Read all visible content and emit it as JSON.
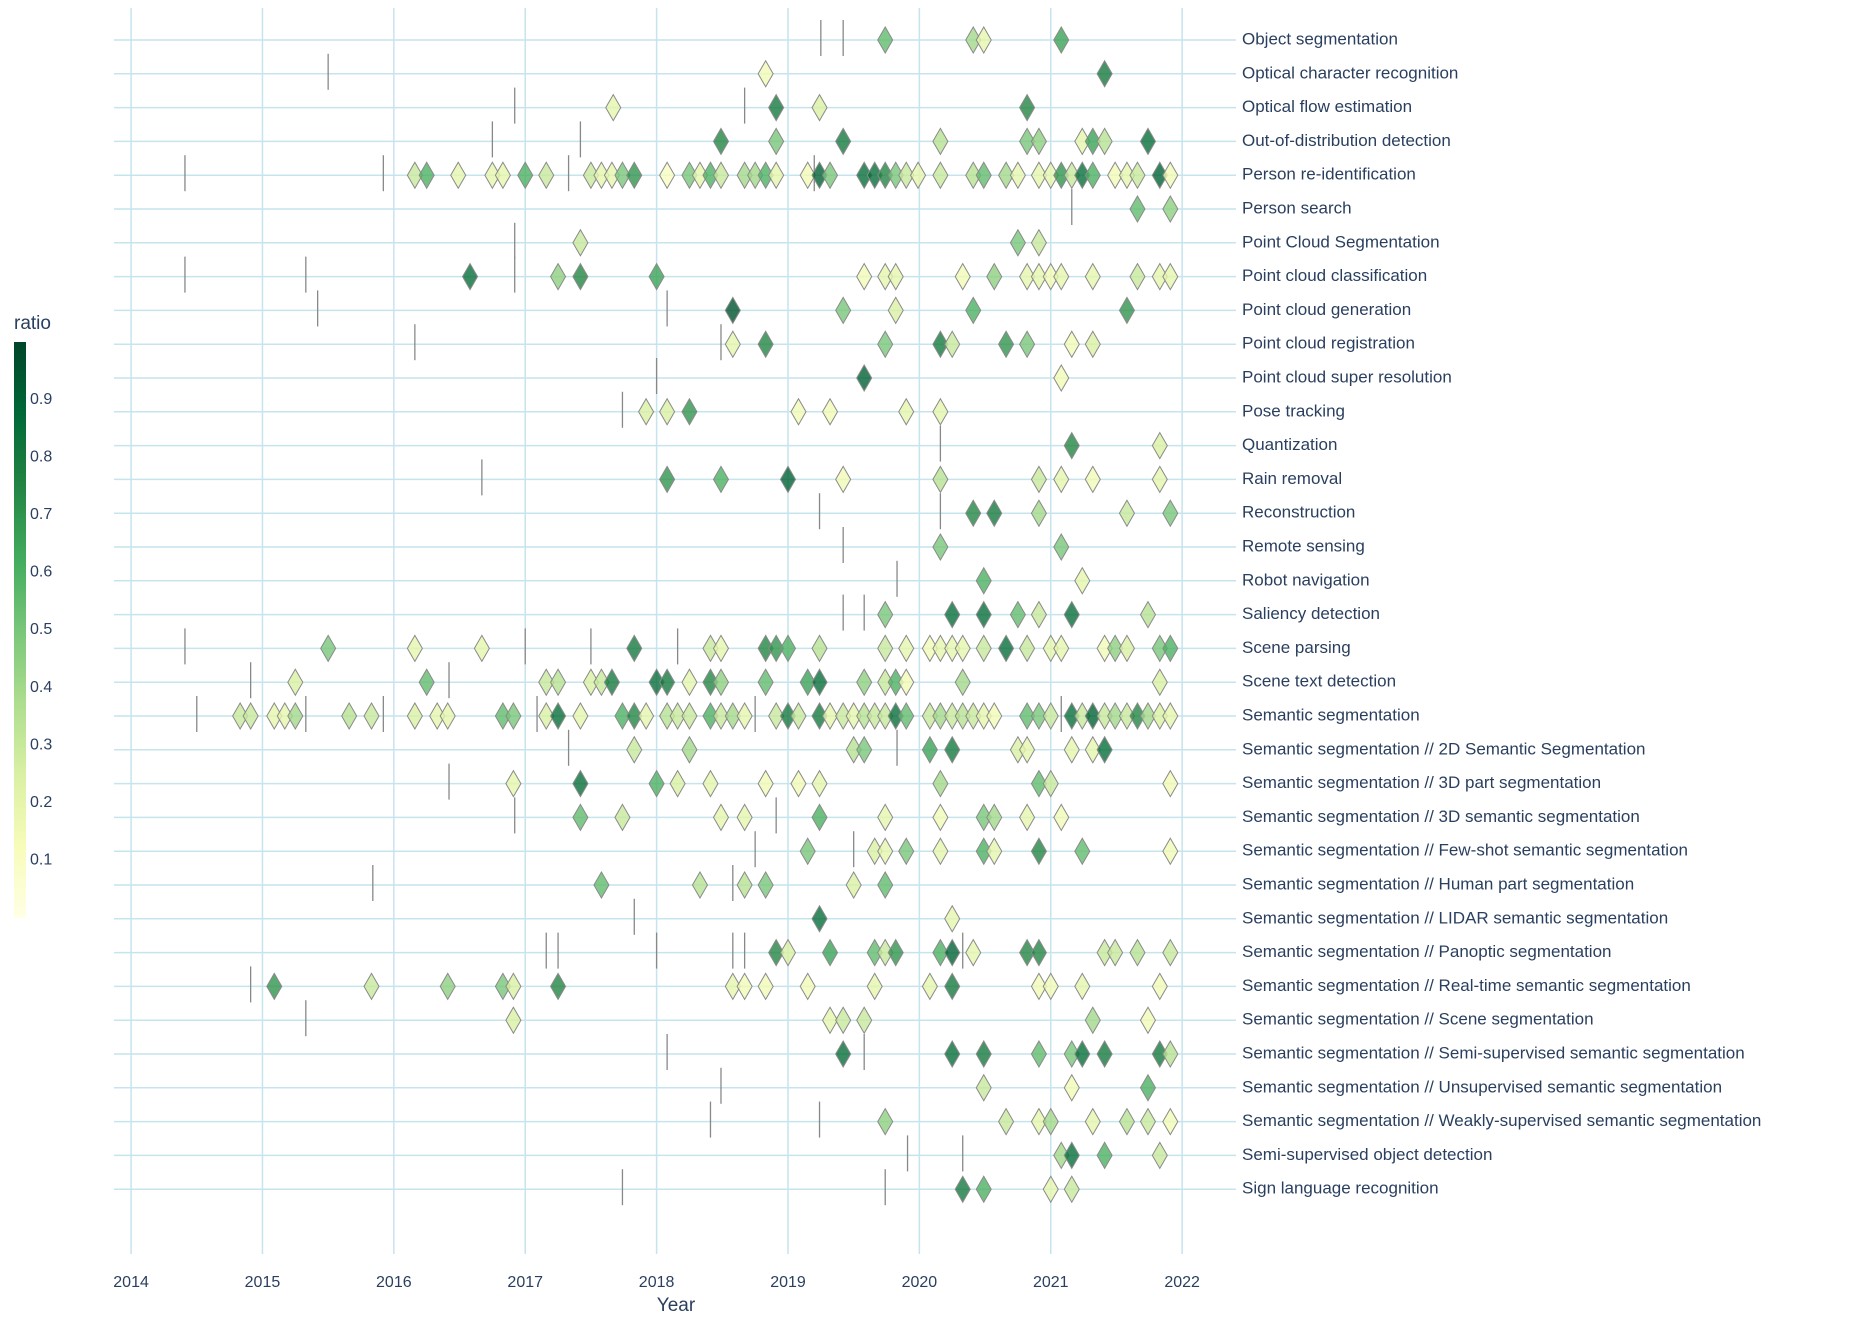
{
  "chart_data": {
    "type": "scatter",
    "xlabel": "Year",
    "xlim": [
      2013.87,
      2022.41
    ],
    "xticks": [
      2014,
      2015,
      2016,
      2017,
      2018,
      2019,
      2020,
      2021,
      2022
    ],
    "grid": true,
    "colorbar": {
      "title": "ratio",
      "lim": [
        0,
        1
      ],
      "ticks": [
        0.1,
        0.2,
        0.3,
        0.4,
        0.5,
        0.6,
        0.7,
        0.8,
        0.9
      ],
      "colorscale": [
        "#ffffe5",
        "#f7fcb9",
        "#d9f0a3",
        "#addd8e",
        "#78c679",
        "#41ab5d",
        "#238443",
        "#006837",
        "#004529"
      ]
    },
    "rows": [
      {
        "name": "Object segmentation",
        "x": [
          2019.74,
          2020.41,
          2020.49,
          2021.08
        ],
        "ratio": [
          0.55,
          0.4,
          0.2,
          0.65
        ],
        "ticks": [
          2019.25,
          2019.42
        ]
      },
      {
        "name": "Optical character recognition",
        "x": [
          2018.83,
          2021.41
        ],
        "ratio": [
          0.15,
          0.8
        ],
        "ticks": [
          2015.5
        ]
      },
      {
        "name": "Optical flow estimation",
        "x": [
          2017.67,
          2018.91,
          2019.24,
          2020.82
        ],
        "ratio": [
          0.2,
          0.8,
          0.25,
          0.75
        ],
        "ticks": [
          2016.92,
          2018.67
        ]
      },
      {
        "name": "Out-of-distribution detection",
        "x": [
          2018.49,
          2018.91,
          2019.42,
          2020.16,
          2020.82,
          2020.91,
          2021.24,
          2021.32,
          2021.41,
          2021.74
        ],
        "ratio": [
          0.75,
          0.5,
          0.8,
          0.35,
          0.5,
          0.45,
          0.2,
          0.65,
          0.35,
          0.85
        ],
        "ticks": [
          2016.75,
          2017.42
        ]
      },
      {
        "name": "Person re-identification",
        "x": [
          2016.16,
          2016.25,
          2016.49,
          2016.75,
          2016.83,
          2017.0,
          2017.16,
          2017.5,
          2017.58,
          2017.66,
          2017.74,
          2017.83,
          2018.08,
          2018.25,
          2018.33,
          2018.41,
          2018.49,
          2018.67,
          2018.75,
          2018.83,
          2018.91,
          2019.15,
          2019.24,
          2019.32,
          2019.58,
          2019.66,
          2019.74,
          2019.82,
          2019.9,
          2019.99,
          2020.16,
          2020.41,
          2020.49,
          2020.66,
          2020.75,
          2020.91,
          2021.0,
          2021.08,
          2021.16,
          2021.24,
          2021.32,
          2021.49,
          2021.58,
          2021.66,
          2021.83,
          2021.91
        ],
        "ratio": [
          0.3,
          0.6,
          0.2,
          0.2,
          0.2,
          0.6,
          0.3,
          0.3,
          0.2,
          0.2,
          0.5,
          0.7,
          0.1,
          0.5,
          0.2,
          0.6,
          0.3,
          0.4,
          0.4,
          0.6,
          0.2,
          0.15,
          0.9,
          0.5,
          0.85,
          0.85,
          0.75,
          0.5,
          0.3,
          0.2,
          0.3,
          0.35,
          0.55,
          0.4,
          0.2,
          0.2,
          0.2,
          0.7,
          0.3,
          0.85,
          0.6,
          0.15,
          0.2,
          0.3,
          0.9,
          0.15
        ],
        "ticks": [
          2014.41,
          2015.92,
          2017.33,
          2019.2
        ]
      },
      {
        "name": "Person search",
        "x": [
          2021.66,
          2021.91
        ],
        "ratio": [
          0.55,
          0.45
        ],
        "ticks": [
          2021.16
        ]
      },
      {
        "name": "Point Cloud Segmentation",
        "x": [
          2017.42,
          2020.75,
          2020.91
        ],
        "ratio": [
          0.3,
          0.5,
          0.3
        ],
        "ticks": [
          2016.92
        ]
      },
      {
        "name": "Point cloud classification",
        "x": [
          2016.58,
          2017.25,
          2017.42,
          2018.0,
          2019.58,
          2019.74,
          2019.82,
          2020.33,
          2020.57,
          2020.82,
          2020.91,
          2021.0,
          2021.08,
          2021.32,
          2021.66,
          2021.83,
          2021.91
        ],
        "ratio": [
          0.85,
          0.45,
          0.75,
          0.65,
          0.15,
          0.2,
          0.2,
          0.15,
          0.45,
          0.2,
          0.2,
          0.15,
          0.2,
          0.2,
          0.3,
          0.2,
          0.2
        ],
        "ticks": [
          2014.41,
          2015.33,
          2016.92
        ]
      },
      {
        "name": "Point cloud generation",
        "x": [
          2018.58,
          2019.42,
          2019.82,
          2020.41,
          2021.58
        ],
        "ratio": [
          0.95,
          0.5,
          0.25,
          0.6,
          0.7
        ],
        "ticks": [
          2015.42,
          2018.08
        ]
      },
      {
        "name": "Point cloud registration",
        "x": [
          2018.58,
          2018.83,
          2019.74,
          2020.16,
          2020.25,
          2020.66,
          2020.82,
          2021.16,
          2021.32
        ],
        "ratio": [
          0.2,
          0.75,
          0.5,
          0.8,
          0.3,
          0.7,
          0.5,
          0.15,
          0.25
        ],
        "ticks": [
          2016.16,
          2018.49
        ]
      },
      {
        "name": "Point cloud super resolution",
        "x": [
          2019.58,
          2021.08
        ],
        "ratio": [
          0.9,
          0.15
        ],
        "ticks": [
          2018.0
        ]
      },
      {
        "name": "Pose tracking",
        "x": [
          2017.92,
          2018.08,
          2018.25,
          2019.08,
          2019.32,
          2019.9,
          2020.16
        ],
        "ratio": [
          0.25,
          0.25,
          0.7,
          0.15,
          0.15,
          0.2,
          0.2
        ],
        "ticks": [
          2017.74
        ]
      },
      {
        "name": "Quantization",
        "x": [
          2021.16,
          2021.83
        ],
        "ratio": [
          0.75,
          0.25
        ],
        "ticks": [
          2020.16
        ]
      },
      {
        "name": "Rain removal",
        "x": [
          2018.08,
          2018.49,
          2019.0,
          2019.42,
          2020.16,
          2020.91,
          2021.08,
          2021.32,
          2021.83
        ],
        "ratio": [
          0.7,
          0.6,
          0.9,
          0.15,
          0.35,
          0.3,
          0.2,
          0.15,
          0.2
        ],
        "ticks": [
          2016.67
        ]
      },
      {
        "name": "Reconstruction",
        "x": [
          2020.41,
          2020.57,
          2020.91,
          2021.58,
          2021.91
        ],
        "ratio": [
          0.75,
          0.8,
          0.4,
          0.3,
          0.5
        ],
        "ticks": [
          2019.24,
          2020.16
        ]
      },
      {
        "name": "Remote sensing",
        "x": [
          2020.16,
          2021.08
        ],
        "ratio": [
          0.5,
          0.5
        ],
        "ticks": [
          2019.42
        ]
      },
      {
        "name": "Robot navigation",
        "x": [
          2020.49,
          2021.24
        ],
        "ratio": [
          0.6,
          0.2
        ],
        "ticks": [
          2019.83
        ]
      },
      {
        "name": "Saliency detection",
        "x": [
          2019.74,
          2020.25,
          2020.49,
          2020.75,
          2020.91,
          2021.16,
          2021.74
        ],
        "ratio": [
          0.5,
          0.85,
          0.85,
          0.55,
          0.3,
          0.85,
          0.35
        ],
        "ticks": [
          2019.42,
          2019.58
        ]
      },
      {
        "name": "Scene parsing",
        "x": [
          2015.5,
          2016.16,
          2016.67,
          2017.83,
          2018.41,
          2018.49,
          2018.83,
          2018.91,
          2019.0,
          2019.24,
          2019.74,
          2019.9,
          2020.08,
          2020.16,
          2020.25,
          2020.33,
          2020.49,
          2020.66,
          2020.82,
          2021.0,
          2021.08,
          2021.41,
          2021.49,
          2021.58,
          2021.83,
          2021.91
        ],
        "ratio": [
          0.5,
          0.2,
          0.2,
          0.8,
          0.3,
          0.2,
          0.75,
          0.7,
          0.6,
          0.35,
          0.3,
          0.2,
          0.15,
          0.2,
          0.2,
          0.2,
          0.3,
          0.85,
          0.3,
          0.2,
          0.2,
          0.15,
          0.45,
          0.25,
          0.5,
          0.6
        ],
        "ticks": [
          2014.41,
          2017.0,
          2017.5,
          2018.16
        ]
      },
      {
        "name": "Scene text detection",
        "x": [
          2015.25,
          2016.25,
          2017.16,
          2017.25,
          2017.5,
          2017.58,
          2017.66,
          2018.0,
          2018.08,
          2018.25,
          2018.41,
          2018.49,
          2018.83,
          2019.15,
          2019.24,
          2019.58,
          2019.74,
          2019.82,
          2019.9,
          2020.33,
          2021.83
        ],
        "ratio": [
          0.25,
          0.55,
          0.3,
          0.35,
          0.25,
          0.3,
          0.8,
          0.85,
          0.8,
          0.2,
          0.75,
          0.45,
          0.55,
          0.65,
          0.85,
          0.45,
          0.3,
          0.6,
          0.15,
          0.4,
          0.25
        ],
        "ticks": [
          2014.91,
          2016.42
        ]
      },
      {
        "name": "Semantic segmentation",
        "x": [
          2014.83,
          2014.91,
          2015.09,
          2015.17,
          2015.25,
          2015.66,
          2015.83,
          2016.16,
          2016.33,
          2016.41,
          2016.83,
          2016.91,
          2017.16,
          2017.25,
          2017.42,
          2017.74,
          2017.83,
          2017.92,
          2018.08,
          2018.16,
          2018.25,
          2018.41,
          2018.49,
          2018.58,
          2018.67,
          2018.91,
          2019.0,
          2019.08,
          2019.24,
          2019.32,
          2019.42,
          2019.5,
          2019.58,
          2019.66,
          2019.74,
          2019.82,
          2019.9,
          2020.08,
          2020.16,
          2020.25,
          2020.33,
          2020.41,
          2020.49,
          2020.57,
          2020.82,
          2020.91,
          2021.0,
          2021.16,
          2021.24,
          2021.32,
          2021.41,
          2021.49,
          2021.58,
          2021.66,
          2021.74,
          2021.83,
          2021.91
        ],
        "ratio": [
          0.3,
          0.3,
          0.2,
          0.2,
          0.4,
          0.35,
          0.3,
          0.25,
          0.2,
          0.2,
          0.55,
          0.5,
          0.25,
          0.85,
          0.2,
          0.6,
          0.75,
          0.2,
          0.35,
          0.3,
          0.3,
          0.6,
          0.3,
          0.4,
          0.2,
          0.3,
          0.8,
          0.3,
          0.8,
          0.2,
          0.3,
          0.2,
          0.35,
          0.3,
          0.3,
          0.85,
          0.55,
          0.3,
          0.4,
          0.3,
          0.35,
          0.3,
          0.2,
          0.15,
          0.55,
          0.5,
          0.3,
          0.85,
          0.3,
          0.9,
          0.3,
          0.4,
          0.3,
          0.75,
          0.4,
          0.25,
          0.2
        ],
        "ticks": [
          2014.5,
          2015.33,
          2015.92,
          2017.09,
          2018.75,
          2021.08
        ]
      },
      {
        "name": "Semantic segmentation // 2D Semantic Segmentation",
        "x": [
          2017.83,
          2018.25,
          2019.5,
          2019.58,
          2020.08,
          2020.25,
          2020.75,
          2020.82,
          2021.16,
          2021.32,
          2021.41
        ],
        "ratio": [
          0.3,
          0.4,
          0.35,
          0.5,
          0.65,
          0.8,
          0.25,
          0.2,
          0.2,
          0.2,
          0.85
        ],
        "ticks": [
          2017.33,
          2019.83
        ]
      },
      {
        "name": "Semantic segmentation // 3D part segmentation",
        "x": [
          2016.91,
          2017.42,
          2018.0,
          2018.16,
          2018.41,
          2018.83,
          2019.08,
          2019.24,
          2020.16,
          2020.91,
          2021.0,
          2021.91
        ],
        "ratio": [
          0.2,
          0.85,
          0.6,
          0.25,
          0.2,
          0.15,
          0.15,
          0.2,
          0.4,
          0.55,
          0.3,
          0.15
        ],
        "ticks": [
          2016.42
        ]
      },
      {
        "name": "Semantic segmentation // 3D semantic segmentation",
        "x": [
          2017.42,
          2017.74,
          2018.49,
          2018.67,
          2019.24,
          2019.74,
          2020.16,
          2020.49,
          2020.57,
          2020.82,
          2021.08
        ],
        "ratio": [
          0.55,
          0.3,
          0.2,
          0.2,
          0.6,
          0.2,
          0.15,
          0.5,
          0.4,
          0.2,
          0.15
        ],
        "ticks": [
          2016.92,
          2018.91
        ]
      },
      {
        "name": "Semantic segmentation // Few-shot semantic segmentation",
        "x": [
          2019.15,
          2019.66,
          2019.74,
          2019.9,
          2020.16,
          2020.49,
          2020.57,
          2020.91,
          2021.24,
          2021.91
        ],
        "ratio": [
          0.5,
          0.25,
          0.2,
          0.5,
          0.2,
          0.6,
          0.2,
          0.75,
          0.55,
          0.15
        ],
        "ticks": [
          2018.75,
          2019.5
        ]
      },
      {
        "name": "Semantic segmentation // Human part segmentation",
        "x": [
          2017.58,
          2018.33,
          2018.67,
          2018.83,
          2019.5,
          2019.74
        ],
        "ratio": [
          0.55,
          0.35,
          0.35,
          0.5,
          0.25,
          0.55
        ],
        "ticks": [
          2015.84,
          2018.58
        ]
      },
      {
        "name": "Semantic segmentation // LIDAR semantic segmentation",
        "x": [
          2019.24,
          2020.25
        ],
        "ratio": [
          0.85,
          0.2
        ],
        "ticks": [
          2017.83
        ]
      },
      {
        "name": "Semantic segmentation // Panoptic segmentation",
        "x": [
          2018.91,
          2019.0,
          2019.32,
          2019.66,
          2019.74,
          2019.82,
          2020.16,
          2020.25,
          2020.41,
          2020.82,
          2020.91,
          2021.41,
          2021.49,
          2021.66,
          2021.91
        ],
        "ratio": [
          0.75,
          0.25,
          0.65,
          0.55,
          0.3,
          0.7,
          0.6,
          0.9,
          0.2,
          0.75,
          0.75,
          0.3,
          0.3,
          0.35,
          0.3
        ],
        "ticks": [
          2017.16,
          2017.25,
          2018.0,
          2018.58,
          2018.67,
          2020.33
        ]
      },
      {
        "name": "Semantic segmentation // Real-time semantic segmentation",
        "x": [
          2015.09,
          2015.83,
          2016.41,
          2016.83,
          2016.91,
          2017.25,
          2018.58,
          2018.67,
          2018.83,
          2019.15,
          2019.66,
          2020.08,
          2020.25,
          2020.91,
          2021.0,
          2021.24,
          2021.83
        ],
        "ratio": [
          0.7,
          0.3,
          0.45,
          0.5,
          0.25,
          0.75,
          0.2,
          0.15,
          0.15,
          0.15,
          0.2,
          0.2,
          0.8,
          0.15,
          0.15,
          0.2,
          0.15
        ],
        "ticks": [
          2014.91
        ]
      },
      {
        "name": "Semantic segmentation // Scene segmentation",
        "x": [
          2016.91,
          2019.32,
          2019.42,
          2019.58,
          2021.32,
          2021.74
        ],
        "ratio": [
          0.25,
          0.2,
          0.3,
          0.3,
          0.4,
          0.15
        ],
        "ticks": [
          2015.33
        ]
      },
      {
        "name": "Semantic segmentation // Semi-supervised semantic segmentation",
        "x": [
          2019.42,
          2020.25,
          2020.49,
          2020.91,
          2021.16,
          2021.24,
          2021.41,
          2021.83,
          2021.91
        ],
        "ratio": [
          0.85,
          0.85,
          0.8,
          0.55,
          0.5,
          0.85,
          0.8,
          0.8,
          0.35
        ],
        "ticks": [
          2018.08,
          2019.58
        ]
      },
      {
        "name": "Semantic segmentation // Unsupervised semantic segmentation",
        "x": [
          2020.49,
          2021.16,
          2021.74
        ],
        "ratio": [
          0.3,
          0.15,
          0.6
        ],
        "ticks": [
          2018.49
        ]
      },
      {
        "name": "Semantic segmentation // Weakly-supervised semantic segmentation",
        "x": [
          2019.74,
          2020.66,
          2020.91,
          2021.0,
          2021.32,
          2021.58,
          2021.74,
          2021.91
        ],
        "ratio": [
          0.45,
          0.3,
          0.2,
          0.4,
          0.2,
          0.35,
          0.3,
          0.15
        ],
        "ticks": [
          2018.41,
          2019.24
        ]
      },
      {
        "name": "Semi-supervised object detection",
        "x": [
          2021.08,
          2021.16,
          2021.41,
          2021.83
        ],
        "ratio": [
          0.4,
          0.85,
          0.6,
          0.3
        ],
        "ticks": [
          2019.91,
          2020.33
        ]
      },
      {
        "name": "Sign language recognition",
        "x": [
          2020.33,
          2020.49,
          2021.0,
          2021.16
        ],
        "ratio": [
          0.8,
          0.6,
          0.2,
          0.3
        ],
        "ticks": [
          2017.74,
          2019.74
        ]
      }
    ]
  }
}
